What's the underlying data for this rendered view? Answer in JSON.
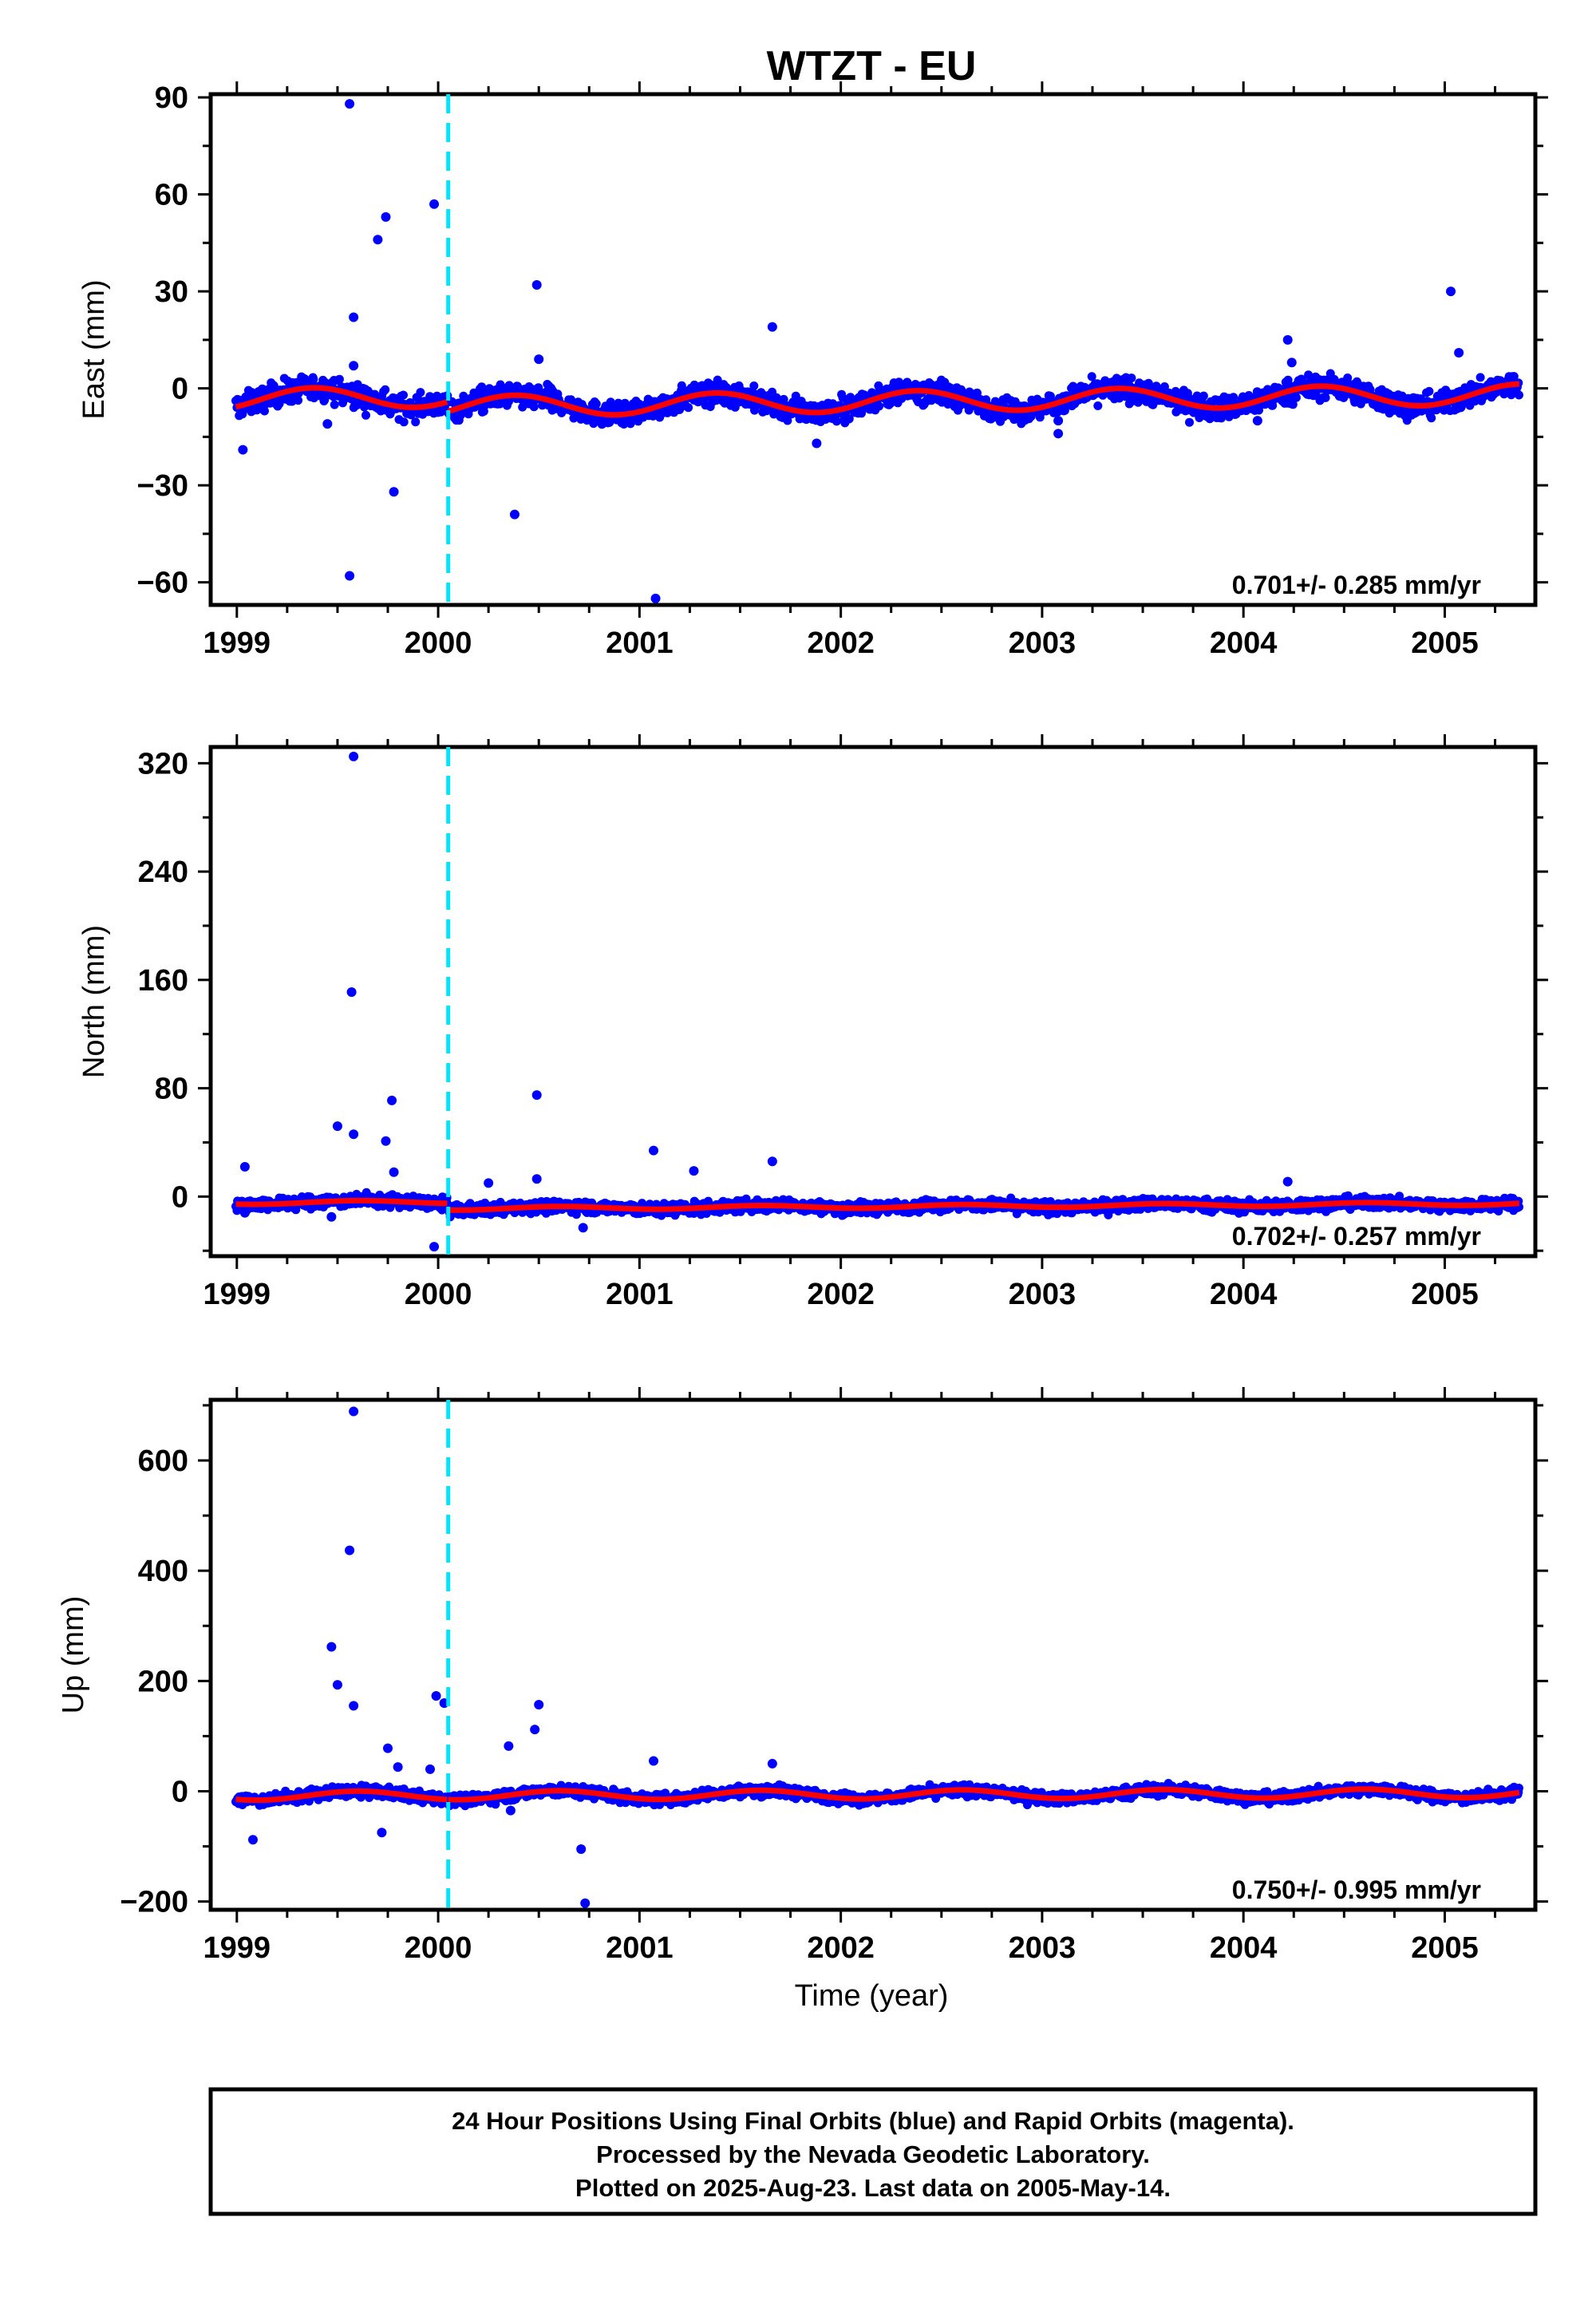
{
  "chart_data": {
    "type": "scatter",
    "title": "WTZT - EU",
    "xlabel": "Time (year)",
    "x_ticks": [
      "1999",
      "2000",
      "2001",
      "2002",
      "2003",
      "2004",
      "2005"
    ],
    "xlim": [
      1998.87,
      2005.45
    ],
    "break_epoch": 2000.05,
    "series_colors": {
      "positions": "#0000ff",
      "model": "#ff0000",
      "break_line": "#00e5ff"
    },
    "panels": [
      {
        "name": "east",
        "ylabel": "East (mm)",
        "ylim": [
          -67,
          91
        ],
        "y_ticks": [
          "90",
          "60",
          "30",
          "0",
          "−30",
          "−60"
        ],
        "y_tick_values": [
          90,
          60,
          30,
          0,
          -30,
          -60
        ],
        "rate_text": "0.701+/- 0.285 mm/yr",
        "trend": {
          "offset": -1.2,
          "slope": 0.701,
          "amplitude": 3.2,
          "phase_peak": 2000.38,
          "step_at_break": -3.0
        },
        "noise_mm": 1.8,
        "outliers": [
          [
            1999.03,
            -19
          ],
          [
            1999.56,
            88
          ],
          [
            1999.56,
            -58
          ],
          [
            1999.58,
            22
          ],
          [
            1999.58,
            7
          ],
          [
            1999.7,
            46
          ],
          [
            1999.74,
            53
          ],
          [
            1999.78,
            -32
          ],
          [
            1999.45,
            -11
          ],
          [
            1999.98,
            57
          ],
          [
            2000.38,
            -39
          ],
          [
            2000.49,
            32
          ],
          [
            2000.5,
            9
          ],
          [
            2001.08,
            -65
          ],
          [
            2001.66,
            19
          ],
          [
            2001.88,
            -17
          ],
          [
            2003.08,
            -14
          ],
          [
            2003.08,
            -10
          ],
          [
            2004.22,
            15
          ],
          [
            2004.24,
            8
          ],
          [
            2004.07,
            -10
          ],
          [
            2005.03,
            30
          ],
          [
            2005.07,
            11
          ]
        ]
      },
      {
        "name": "north",
        "ylabel": "North (mm)",
        "ylim": [
          -44,
          332
        ],
        "y_ticks": [
          "320",
          "240",
          "160",
          "80",
          "0"
        ],
        "y_tick_values": [
          320,
          240,
          160,
          80,
          0
        ],
        "rate_text": "0.702+/- 0.257 mm/yr",
        "trend": {
          "offset": -2.5,
          "slope": 0.702,
          "amplitude": 1.2,
          "phase_peak": 2000.6,
          "step_at_break": -5.0
        },
        "noise_mm": 2.2,
        "outliers": [
          [
            1999.04,
            22
          ],
          [
            1999.04,
            -12
          ],
          [
            1999.5,
            52
          ],
          [
            1999.47,
            -15
          ],
          [
            1999.58,
            325
          ],
          [
            1999.57,
            151
          ],
          [
            1999.58,
            46
          ],
          [
            1999.59,
            -5
          ],
          [
            1999.77,
            71
          ],
          [
            1999.74,
            41
          ],
          [
            1999.78,
            18
          ],
          [
            1999.98,
            -37
          ],
          [
            2000.25,
            10
          ],
          [
            2000.49,
            75
          ],
          [
            2000.49,
            13
          ],
          [
            2000.72,
            -23
          ],
          [
            2000.82,
            -10
          ],
          [
            2001.07,
            34
          ],
          [
            2001.27,
            19
          ],
          [
            2001.66,
            26
          ],
          [
            2004.07,
            -10
          ],
          [
            2004.22,
            11
          ]
        ]
      },
      {
        "name": "up",
        "ylabel": "Up (mm)",
        "ylim": [
          -215,
          710
        ],
        "y_ticks": [
          "600",
          "400",
          "200",
          "0",
          "−200"
        ],
        "y_tick_values": [
          600,
          400,
          200,
          0,
          -200
        ],
        "rate_text": "0.750+/- 0.995 mm/yr",
        "trend": {
          "offset": -6.0,
          "slope": 0.75,
          "amplitude": 8.0,
          "phase_peak": 2000.6,
          "step_at_break": 0.0
        },
        "noise_mm": 5.0,
        "outliers": [
          [
            1999.08,
            -88
          ],
          [
            1999.47,
            262
          ],
          [
            1999.5,
            193
          ],
          [
            1999.56,
            437
          ],
          [
            1999.58,
            689
          ],
          [
            1999.58,
            155
          ],
          [
            1999.72,
            -75
          ],
          [
            1999.75,
            78
          ],
          [
            1999.8,
            44
          ],
          [
            1999.96,
            40
          ],
          [
            1999.99,
            173
          ],
          [
            2000.03,
            160
          ],
          [
            2000.35,
            82
          ],
          [
            2000.36,
            -35
          ],
          [
            2000.48,
            112
          ],
          [
            2000.5,
            157
          ],
          [
            2000.71,
            -105
          ],
          [
            2000.73,
            -203
          ],
          [
            2001.07,
            55
          ],
          [
            2001.66,
            50
          ]
        ]
      }
    ],
    "footer_lines": [
      "24 Hour Positions Using Final Orbits (blue) and Rapid Orbits (magenta).",
      "Processed by the Nevada Geodetic Laboratory.",
      "Plotted on 2025-Aug-23. Last data on 2005-May-14."
    ]
  }
}
